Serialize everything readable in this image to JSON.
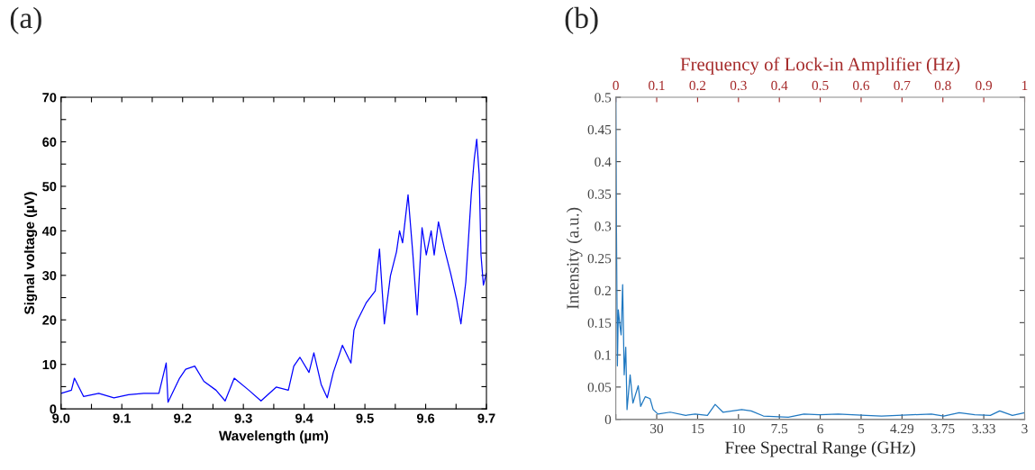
{
  "chart_data": [
    {
      "type": "line",
      "title": "(a)",
      "xlabel": "Wavelength (µm)",
      "ylabel": "Signal voltage (µV)",
      "xlim": [
        9.0,
        9.7
      ],
      "ylim": [
        0,
        70
      ],
      "xticks": [
        {
          "value": 9.0,
          "label": "9.0"
        },
        {
          "value": 9.05,
          "label": null
        },
        9.1,
        {
          "value": 9.15,
          "label": null
        },
        9.2,
        {
          "value": 9.25,
          "label": null
        },
        9.3,
        {
          "value": 9.35,
          "label": null
        },
        9.4,
        {
          "value": 9.45,
          "label": null
        },
        9.5,
        {
          "value": 9.55,
          "label": null
        },
        9.6,
        {
          "value": 9.65,
          "label": null
        },
        9.7
      ],
      "yticks": [
        0,
        {
          "value": 5,
          "label": null
        },
        10,
        {
          "value": 15,
          "label": null
        },
        20,
        {
          "value": 25,
          "label": null
        },
        30,
        {
          "value": 35,
          "label": null
        },
        40,
        {
          "value": 45,
          "label": null
        },
        50,
        {
          "value": 55,
          "label": null
        },
        60,
        {
          "value": 65,
          "label": null
        },
        70
      ],
      "series": [
        {
          "color": "#0000ff",
          "x": [
            9.0,
            9.017,
            9.022,
            9.037,
            9.062,
            9.087,
            9.111,
            9.136,
            9.161,
            9.173,
            9.176,
            9.195,
            9.205,
            9.22,
            9.235,
            9.255,
            9.27,
            9.285,
            9.309,
            9.329,
            9.354,
            9.374,
            9.383,
            9.393,
            9.408,
            9.416,
            9.428,
            9.438,
            9.448,
            9.463,
            9.477,
            9.482,
            9.487,
            9.502,
            9.517,
            9.524,
            9.532,
            9.542,
            9.552,
            9.557,
            9.562,
            9.571,
            9.579,
            9.586,
            9.594,
            9.601,
            9.609,
            9.614,
            9.621,
            9.631,
            9.641,
            9.651,
            9.658,
            9.666,
            9.675,
            9.68,
            9.684,
            9.688,
            9.691,
            9.695,
            9.7
          ],
          "values": [
            3.5,
            4.2,
            6.9,
            2.8,
            3.5,
            2.5,
            3.2,
            3.5,
            3.5,
            10.3,
            1.5,
            6.9,
            8.9,
            9.6,
            6.2,
            4.2,
            1.8,
            6.9,
            4.2,
            1.8,
            4.9,
            4.2,
            9.6,
            11.6,
            8.2,
            12.6,
            5.5,
            2.5,
            8.2,
            14.3,
            10.3,
            17.7,
            19.7,
            23.8,
            26.5,
            35.9,
            19.1,
            29.9,
            35.3,
            40.0,
            37.3,
            48.1,
            34.6,
            21.1,
            40.7,
            34.6,
            40.0,
            34.6,
            42.0,
            35.9,
            30.5,
            24.5,
            19.1,
            28.5,
            48.1,
            56.2,
            60.6,
            52.8,
            34.6,
            27.8,
            30.5
          ]
        }
      ]
    },
    {
      "type": "line",
      "title": "(b)",
      "xlabel": "Free Spectral Range (GHz)",
      "ylabel": "Intensity (a.u.)",
      "x2label": "Frequency of Lock-in Amplifier (Hz)",
      "ylim": [
        0,
        0.5
      ],
      "x2lim": [
        0,
        1
      ],
      "categories": [
        null,
        "30",
        "15",
        "10",
        "7.5",
        "6",
        "5",
        "4.29",
        "3.75",
        "3.33",
        "3"
      ],
      "x2ticks": [
        0,
        0.1,
        0.2,
        0.3,
        0.4,
        0.5,
        0.6,
        0.7,
        0.8,
        0.9,
        1
      ],
      "yticks": [
        0,
        0.05,
        0.1,
        0.15,
        0.2,
        0.25,
        0.3,
        0.35,
        0.4,
        0.45,
        0.5
      ],
      "series": [
        {
          "color": "#1f78c1",
          "axis": "x2",
          "x": [
            0,
            0.0015,
            0.0038,
            0.0061,
            0.0099,
            0.0129,
            0.0167,
            0.0205,
            0.0243,
            0.0274,
            0.035,
            0.0418,
            0.0548,
            0.0608,
            0.0722,
            0.0837,
            0.0913,
            0.103,
            0.133,
            0.171,
            0.194,
            0.224,
            0.243,
            0.262,
            0.308,
            0.331,
            0.361,
            0.422,
            0.46,
            0.498,
            0.544,
            0.612,
            0.65,
            0.726,
            0.772,
            0.802,
            0.84,
            0.878,
            0.916,
            0.939,
            0.97,
            1.0
          ],
          "values": [
            0.5,
            0.305,
            0.083,
            0.17,
            0.146,
            0.131,
            0.209,
            0.069,
            0.112,
            0.015,
            0.069,
            0.025,
            0.052,
            0.02,
            0.035,
            0.032,
            0.015,
            0.008,
            0.011,
            0.006,
            0.008,
            0.006,
            0.023,
            0.011,
            0.015,
            0.013,
            0.005,
            0.003,
            0.008,
            0.007,
            0.008,
            0.006,
            0.005,
            0.007,
            0.008,
            0.005,
            0.01,
            0.007,
            0.006,
            0.013,
            0.006,
            0.01
          ]
        }
      ]
    }
  ]
}
